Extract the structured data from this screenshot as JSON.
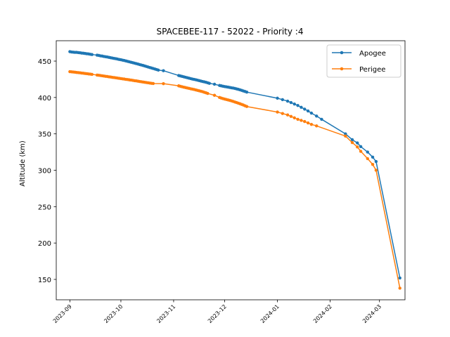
{
  "chart_data": {
    "type": "line",
    "title": "SPACEBEE-117 - 52022 - Priority :4",
    "xlabel": "",
    "ylabel": "Altitude (km)",
    "x_ticks": [
      "2023-09",
      "2023-10",
      "2023-11",
      "2023-12",
      "2024-01",
      "2024-02",
      "2024-03"
    ],
    "y_ticks": [
      150,
      200,
      250,
      300,
      350,
      400,
      450
    ],
    "xlim": [
      "2023-08-24",
      "2024-03-16"
    ],
    "ylim": [
      122,
      478
    ],
    "legend_position": "top-right",
    "grid": false,
    "series": [
      {
        "name": "Apogee",
        "color": "#1f77b4",
        "points": [
          [
            "2023-09-01",
            463
          ],
          [
            "2023-09-02",
            462.5
          ],
          [
            "2023-09-03",
            462.3
          ],
          [
            "2023-09-04",
            462
          ],
          [
            "2023-09-05",
            462
          ],
          [
            "2023-09-06",
            461.7
          ],
          [
            "2023-09-07",
            461.4
          ],
          [
            "2023-09-08",
            461
          ],
          [
            "2023-09-09",
            460.8
          ],
          [
            "2023-09-10",
            460.5
          ],
          [
            "2023-09-11",
            460.1
          ],
          [
            "2023-09-12",
            459.8
          ],
          [
            "2023-09-13",
            459.4
          ],
          [
            "2023-09-14",
            459
          ],
          [
            "2023-09-17",
            458.2
          ],
          [
            "2023-09-18",
            457.8
          ],
          [
            "2023-09-19",
            457.2
          ],
          [
            "2023-09-20",
            456.9
          ],
          [
            "2023-09-21",
            456.4
          ],
          [
            "2023-09-22",
            456
          ],
          [
            "2023-09-23",
            455.6
          ],
          [
            "2023-09-24",
            455.1
          ],
          [
            "2023-09-25",
            454.6
          ],
          [
            "2023-09-26",
            454.2
          ],
          [
            "2023-09-27",
            453.7
          ],
          [
            "2023-09-28",
            453.3
          ],
          [
            "2023-09-29",
            452.8
          ],
          [
            "2023-09-30",
            452.3
          ],
          [
            "2023-10-01",
            451.9
          ],
          [
            "2023-10-02",
            451.3
          ],
          [
            "2023-10-03",
            450.8
          ],
          [
            "2023-10-04",
            450.2
          ],
          [
            "2023-10-05",
            449.6
          ],
          [
            "2023-10-06",
            449
          ],
          [
            "2023-10-07",
            448.4
          ],
          [
            "2023-10-08",
            447.8
          ],
          [
            "2023-10-09",
            447.2
          ],
          [
            "2023-10-10",
            446.6
          ],
          [
            "2023-10-11",
            446
          ],
          [
            "2023-10-12",
            445.3
          ],
          [
            "2023-10-13",
            444.7
          ],
          [
            "2023-10-14",
            444
          ],
          [
            "2023-10-15",
            443.3
          ],
          [
            "2023-10-16",
            442.6
          ],
          [
            "2023-10-17",
            441.9
          ],
          [
            "2023-10-18",
            441.2
          ],
          [
            "2023-10-19",
            440.5
          ],
          [
            "2023-10-20",
            439.8
          ],
          [
            "2023-10-21",
            439.1
          ],
          [
            "2023-10-22",
            438.4
          ],
          [
            "2023-10-23",
            437.6
          ],
          [
            "2023-10-26",
            436.8
          ],
          [
            "2023-11-04",
            430.2
          ],
          [
            "2023-11-05",
            429.6
          ],
          [
            "2023-11-06",
            429
          ],
          [
            "2023-11-07",
            428.4
          ],
          [
            "2023-11-08",
            427.8
          ],
          [
            "2023-11-09",
            427.2
          ],
          [
            "2023-11-10",
            426.6
          ],
          [
            "2023-11-11",
            426
          ],
          [
            "2023-11-12",
            425.4
          ],
          [
            "2023-11-13",
            424.9
          ],
          [
            "2023-11-14",
            424.4
          ],
          [
            "2023-11-15",
            423.8
          ],
          [
            "2023-11-16",
            423.2
          ],
          [
            "2023-11-17",
            422.6
          ],
          [
            "2023-11-18",
            422
          ],
          [
            "2023-11-19",
            421.5
          ],
          [
            "2023-11-20",
            420.9
          ],
          [
            "2023-11-21",
            420.2
          ],
          [
            "2023-11-22",
            419.5
          ],
          [
            "2023-11-25",
            418.2
          ],
          [
            "2023-11-28",
            416.5
          ],
          [
            "2023-11-29",
            416
          ],
          [
            "2023-11-30",
            415.5
          ],
          [
            "2023-12-01",
            415
          ],
          [
            "2023-12-02",
            414.6
          ],
          [
            "2023-12-03",
            414.2
          ],
          [
            "2023-12-04",
            413.8
          ],
          [
            "2023-12-05",
            413.3
          ],
          [
            "2023-12-06",
            412.9
          ],
          [
            "2023-12-07",
            412.4
          ],
          [
            "2023-12-08",
            411.8
          ],
          [
            "2023-12-09",
            411.2
          ],
          [
            "2023-12-10",
            410.5
          ],
          [
            "2023-12-11",
            409.8
          ],
          [
            "2023-12-12",
            409
          ],
          [
            "2023-12-13",
            408.2
          ],
          [
            "2023-12-14",
            407.4
          ],
          [
            "2024-01-01",
            399
          ],
          [
            "2024-01-04",
            397
          ],
          [
            "2024-01-07",
            395
          ],
          [
            "2024-01-09",
            393
          ],
          [
            "2024-01-11",
            391
          ],
          [
            "2024-01-13",
            389
          ],
          [
            "2024-01-15",
            386.5
          ],
          [
            "2024-01-17",
            384
          ],
          [
            "2024-01-19",
            381.5
          ],
          [
            "2024-01-21",
            378.5
          ],
          [
            "2024-01-24",
            374.5
          ],
          [
            "2024-01-27",
            370
          ],
          [
            "2024-02-10",
            350
          ],
          [
            "2024-02-14",
            342
          ],
          [
            "2024-02-17",
            337.5
          ],
          [
            "2024-02-19",
            332.5
          ],
          [
            "2024-02-23",
            325
          ],
          [
            "2024-02-26",
            318
          ],
          [
            "2024-02-28",
            312
          ],
          [
            "2024-03-13",
            152
          ]
        ]
      },
      {
        "name": "Perigee",
        "color": "#ff7f0e",
        "points": [
          [
            "2023-09-01",
            435.5
          ],
          [
            "2023-09-02",
            435.2
          ],
          [
            "2023-09-03",
            435
          ],
          [
            "2023-09-04",
            434.7
          ],
          [
            "2023-09-05",
            434.4
          ],
          [
            "2023-09-06",
            434.2
          ],
          [
            "2023-09-07",
            433.9
          ],
          [
            "2023-09-08",
            433.6
          ],
          [
            "2023-09-09",
            433.3
          ],
          [
            "2023-09-10",
            433
          ],
          [
            "2023-09-11",
            432.7
          ],
          [
            "2023-09-12",
            432.4
          ],
          [
            "2023-09-13",
            432.1
          ],
          [
            "2023-09-14",
            431.8
          ],
          [
            "2023-09-17",
            430.8
          ],
          [
            "2023-09-18",
            430.5
          ],
          [
            "2023-09-19",
            430.2
          ],
          [
            "2023-09-20",
            429.8
          ],
          [
            "2023-09-21",
            429.5
          ],
          [
            "2023-09-22",
            429.1
          ],
          [
            "2023-09-23",
            428.8
          ],
          [
            "2023-09-24",
            428.4
          ],
          [
            "2023-09-25",
            428.1
          ],
          [
            "2023-09-26",
            427.7
          ],
          [
            "2023-09-27",
            427.4
          ],
          [
            "2023-09-28",
            427
          ],
          [
            "2023-09-29",
            426.7
          ],
          [
            "2023-09-30",
            426.3
          ],
          [
            "2023-10-01",
            426
          ],
          [
            "2023-10-02",
            425.6
          ],
          [
            "2023-10-03",
            425.3
          ],
          [
            "2023-10-04",
            424.9
          ],
          [
            "2023-10-05",
            424.6
          ],
          [
            "2023-10-06",
            424.2
          ],
          [
            "2023-10-07",
            423.9
          ],
          [
            "2023-10-08",
            423.5
          ],
          [
            "2023-10-09",
            423.1
          ],
          [
            "2023-10-10",
            422.8
          ],
          [
            "2023-10-11",
            422.4
          ],
          [
            "2023-10-12",
            422
          ],
          [
            "2023-10-13",
            421.6
          ],
          [
            "2023-10-14",
            421.3
          ],
          [
            "2023-10-15",
            420.9
          ],
          [
            "2023-10-16",
            420.5
          ],
          [
            "2023-10-17",
            420.2
          ],
          [
            "2023-10-18",
            419.8
          ],
          [
            "2023-10-19",
            419.5
          ],
          [
            "2023-10-20",
            419.2
          ],
          [
            "2023-10-26",
            419
          ],
          [
            "2023-11-04",
            416
          ],
          [
            "2023-11-05",
            415.3
          ],
          [
            "2023-11-06",
            414.7
          ],
          [
            "2023-11-07",
            414.1
          ],
          [
            "2023-11-08",
            413.6
          ],
          [
            "2023-11-09",
            413.1
          ],
          [
            "2023-11-10",
            412.6
          ],
          [
            "2023-11-11",
            412
          ],
          [
            "2023-11-12",
            411.5
          ],
          [
            "2023-11-13",
            411
          ],
          [
            "2023-11-14",
            410.4
          ],
          [
            "2023-11-15",
            409.8
          ],
          [
            "2023-11-16",
            409.2
          ],
          [
            "2023-11-17",
            408.6
          ],
          [
            "2023-11-18",
            408
          ],
          [
            "2023-11-19",
            407.2
          ],
          [
            "2023-11-20",
            406.4
          ],
          [
            "2023-11-21",
            405.6
          ],
          [
            "2023-11-25",
            403
          ],
          [
            "2023-11-28",
            400
          ],
          [
            "2023-11-29",
            399.2
          ],
          [
            "2023-11-30",
            398.5
          ],
          [
            "2023-12-01",
            397.8
          ],
          [
            "2023-12-02",
            397.2
          ],
          [
            "2023-12-03",
            396.6
          ],
          [
            "2023-12-04",
            396
          ],
          [
            "2023-12-05",
            395.3
          ],
          [
            "2023-12-06",
            394.6
          ],
          [
            "2023-12-07",
            393.8
          ],
          [
            "2023-12-08",
            393
          ],
          [
            "2023-12-09",
            392.2
          ],
          [
            "2023-12-10",
            391.4
          ],
          [
            "2023-12-11",
            390.5
          ],
          [
            "2023-12-12",
            389.6
          ],
          [
            "2023-12-13",
            388.6
          ],
          [
            "2023-12-14",
            387.6
          ],
          [
            "2024-01-01",
            380
          ],
          [
            "2024-01-04",
            378
          ],
          [
            "2024-01-07",
            376
          ],
          [
            "2024-01-09",
            374
          ],
          [
            "2024-01-11",
            372
          ],
          [
            "2024-01-13",
            370
          ],
          [
            "2024-01-15",
            368.5
          ],
          [
            "2024-01-17",
            367
          ],
          [
            "2024-01-19",
            365
          ],
          [
            "2024-01-21",
            363
          ],
          [
            "2024-01-24",
            361
          ],
          [
            "2024-02-10",
            347
          ],
          [
            "2024-02-14",
            338
          ],
          [
            "2024-02-17",
            332
          ],
          [
            "2024-02-19",
            326
          ],
          [
            "2024-02-23",
            316
          ],
          [
            "2024-02-26",
            308
          ],
          [
            "2024-02-28",
            300
          ],
          [
            "2024-03-13",
            138
          ]
        ]
      }
    ]
  }
}
